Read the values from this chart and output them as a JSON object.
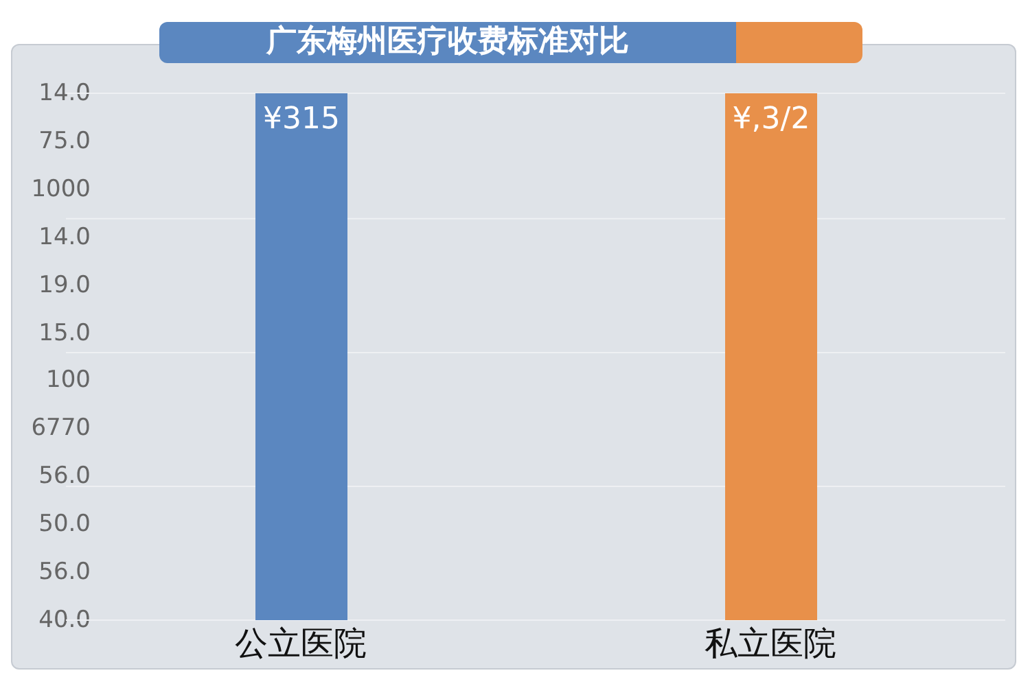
{
  "chart_data": {
    "type": "bar",
    "title": "广东梅州医疗收费标准对比",
    "categories": [
      "公立医院",
      "私立医院"
    ],
    "values": [
      315,
      315
    ],
    "colors": [
      "#5b87c0",
      "#e8904a"
    ],
    "value_labels": [
      "¥315",
      "¥,3/2"
    ],
    "annotations": [
      "14.0",
      "75.0",
      "1000",
      "14.0",
      "19.0",
      "15.0",
      "100",
      "6770",
      "56.0",
      "50.0",
      "56.0",
      "40.0"
    ],
    "grid": "y"
  }
}
